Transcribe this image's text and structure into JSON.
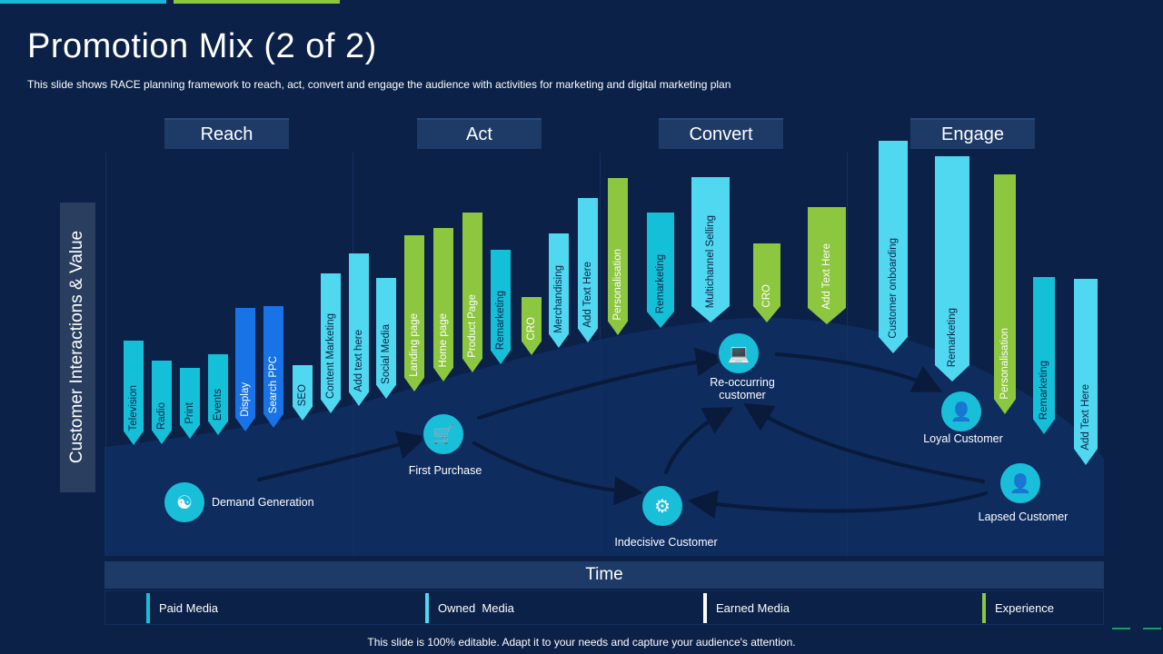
{
  "slide": {
    "title": "Promotion Mix (2 of 2)",
    "subtitle": "This slide shows RACE planning framework to reach, act, convert and engage the audience with activities for marketing and digital marketing plan",
    "footer": "This slide is 100% editable. Adapt it to your needs and capture your audience's attention."
  },
  "stages": [
    "Reach",
    "Act",
    "Convert",
    "Engage"
  ],
  "y_axis_label": "Customer Interactions & Value",
  "x_axis_label": "Time",
  "colors": {
    "background": "#0b2147",
    "paid": "#14c0d8",
    "owned": "#4fd8ef",
    "earned": "#ffffff",
    "experience": "#8dc63f",
    "display": "#1873e6"
  },
  "activities": [
    {
      "label": "Television",
      "category": "paid"
    },
    {
      "label": "Radio",
      "category": "paid"
    },
    {
      "label": "Print",
      "category": "paid"
    },
    {
      "label": "Events",
      "category": "paid"
    },
    {
      "label": "Display",
      "category": "display"
    },
    {
      "label": "Search PPC",
      "category": "display"
    },
    {
      "label": "SEO",
      "category": "owned"
    },
    {
      "label": "Content Marketing",
      "category": "owned"
    },
    {
      "label": "Add text here",
      "category": "owned"
    },
    {
      "label": "Social Media",
      "category": "owned"
    },
    {
      "label": "Landing page",
      "category": "experience"
    },
    {
      "label": "Home page",
      "category": "experience"
    },
    {
      "label": "Product Page",
      "category": "experience"
    },
    {
      "label": "Remarketing",
      "category": "paid"
    },
    {
      "label": "CRO",
      "category": "experience"
    },
    {
      "label": "Merchandising",
      "category": "owned"
    },
    {
      "label": "Add Text Here",
      "category": "owned"
    },
    {
      "label": "Personalisation",
      "category": "experience"
    },
    {
      "label": "Remarketing",
      "category": "paid"
    },
    {
      "label": "Multichannel Selling",
      "category": "owned"
    },
    {
      "label": "CRO",
      "category": "experience"
    },
    {
      "label": "Add Text Here",
      "category": "experience"
    },
    {
      "label": "Customer onboarding",
      "category": "owned"
    },
    {
      "label": "Remarketing",
      "category": "owned"
    },
    {
      "label": "Personalisation",
      "category": "experience"
    },
    {
      "label": "Remarketing",
      "category": "paid"
    },
    {
      "label": "Add Text Here",
      "category": "owned"
    }
  ],
  "journey": {
    "demand_generation": {
      "label": "Demand Generation",
      "icon": "network-icon"
    },
    "first_purchase": {
      "label": "First Purchase",
      "icon": "cart-icon"
    },
    "indecisive_customer": {
      "label": "Indecisive Customer",
      "icon": "gear-head-icon"
    },
    "reoccurring_customer": {
      "label": "Re-occurring customer",
      "icon": "monitor-user-icon"
    },
    "loyal_customer": {
      "label": "Loyal Customer",
      "icon": "user-laptop-icon"
    },
    "lapsed_customer": {
      "label": "Lapsed Customer",
      "icon": "user-chart-icon"
    }
  },
  "legend": [
    {
      "label": "Paid Media",
      "color": "#14c0d8"
    },
    {
      "label": "Owned  Media",
      "color": "#4fd8ef"
    },
    {
      "label": "Earned Media",
      "color": "#ffffff"
    },
    {
      "label": "Experience",
      "color": "#8dc63f"
    }
  ]
}
